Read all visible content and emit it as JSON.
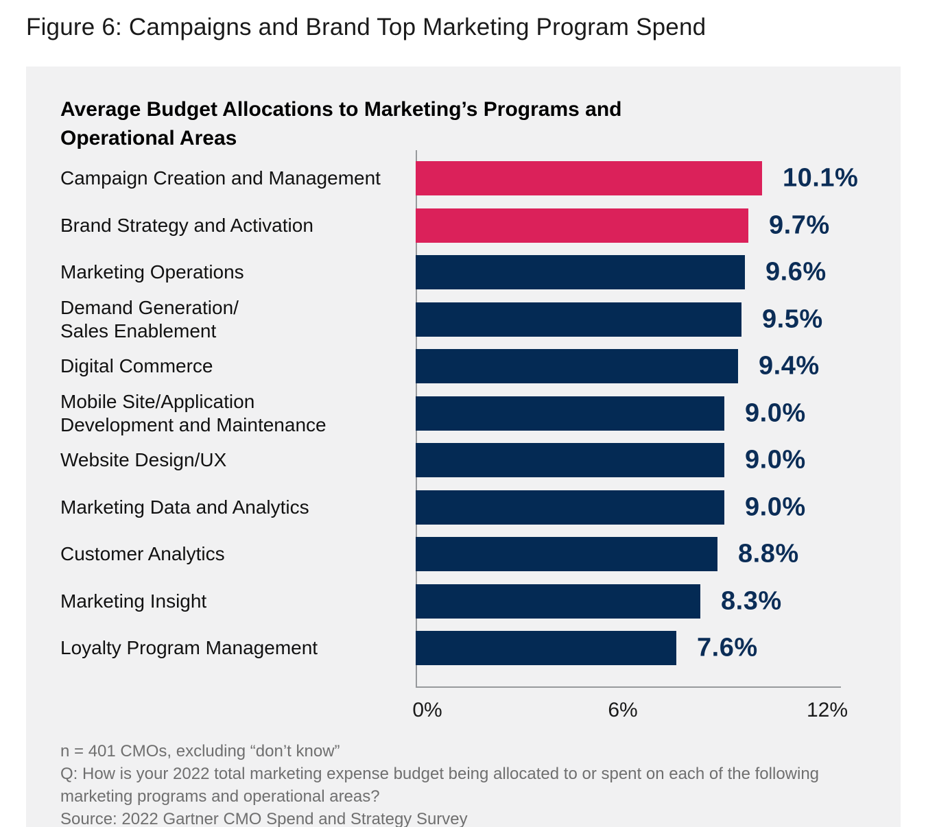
{
  "figure_title": "Figure 6: Campaigns and Brand Top Marketing Program Spend",
  "chart_data": {
    "type": "bar",
    "orientation": "horizontal",
    "title": "Average Budget Allocations to Marketing’s Programs and\nOperational Areas",
    "categories": [
      "Campaign Creation and Management",
      "Brand Strategy and Activation",
      "Marketing Operations",
      "Demand Generation/\nSales Enablement",
      "Digital Commerce",
      "Mobile Site/Application\nDevelopment and Maintenance",
      "Website Design/UX",
      "Marketing Data and Analytics",
      "Customer Analytics",
      "Marketing Insight",
      "Loyalty Program Management"
    ],
    "values": [
      10.1,
      9.7,
      9.6,
      9.5,
      9.4,
      9.0,
      9.0,
      9.0,
      8.8,
      8.3,
      7.6
    ],
    "value_labels": [
      "10.1%",
      "9.7%",
      "9.6%",
      "9.5%",
      "9.4%",
      "9.0%",
      "9.0%",
      "9.0%",
      "8.8%",
      "8.3%",
      "7.6%"
    ],
    "bar_colors": [
      "#db215a",
      "#db215a",
      "#042a54",
      "#042a54",
      "#042a54",
      "#042a54",
      "#042a54",
      "#042a54",
      "#042a54",
      "#042a54",
      "#042a54"
    ],
    "colors": {
      "highlight": "#db215a",
      "base": "#042a54",
      "value_text": "#0b2d57",
      "panel_background": "#f1f1f2"
    },
    "xlim": [
      0,
      12
    ],
    "x_ticks": [
      "0%",
      "6%",
      "12%"
    ],
    "grid": false,
    "legend": "none"
  },
  "footer": {
    "note": "n = 401 CMOs, excluding “don’t know”",
    "question": "Q: How is your 2022 total marketing expense budget being allocated to or spent on each of the following marketing programs and operational areas?",
    "source": "Source: 2022 Gartner CMO Spend and Strategy Survey"
  }
}
